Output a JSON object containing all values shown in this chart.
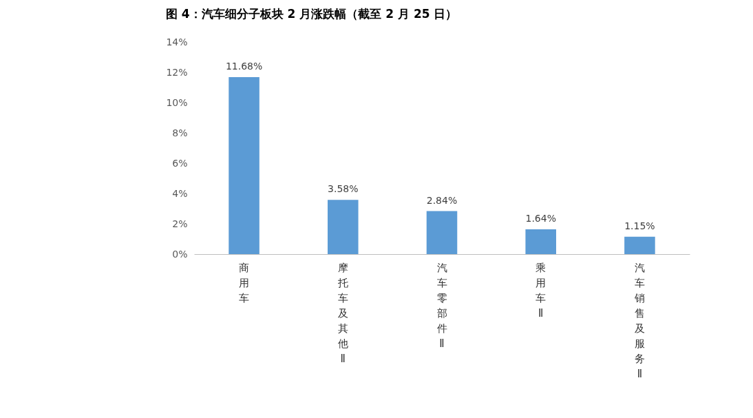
{
  "chart_data": {
    "type": "bar",
    "title": "图 4：汽车细分子板块 2 月涨跌幅（截至 2 月 25 日）",
    "categories": [
      "商用车",
      "摩托车及其他Ⅱ",
      "汽车零部件Ⅱ",
      "乘用车Ⅱ",
      "汽车销售及服务Ⅱ"
    ],
    "values": [
      11.68,
      3.58,
      2.84,
      1.64,
      1.15
    ],
    "value_labels": [
      "11.68%",
      "3.58%",
      "2.84%",
      "1.64%",
      "1.15%"
    ],
    "color": "#5b9bd5",
    "ylim": [
      0,
      14
    ],
    "yticks": [
      {
        "value": 0,
        "label": "0%"
      },
      {
        "value": 2,
        "label": "2%"
      },
      {
        "value": 4,
        "label": "4%"
      },
      {
        "value": 6,
        "label": "6%"
      },
      {
        "value": 8,
        "label": "8%"
      },
      {
        "value": 10,
        "label": "10%"
      },
      {
        "value": 12,
        "label": "12%"
      },
      {
        "value": 14,
        "label": "14%"
      }
    ],
    "grid": false
  }
}
